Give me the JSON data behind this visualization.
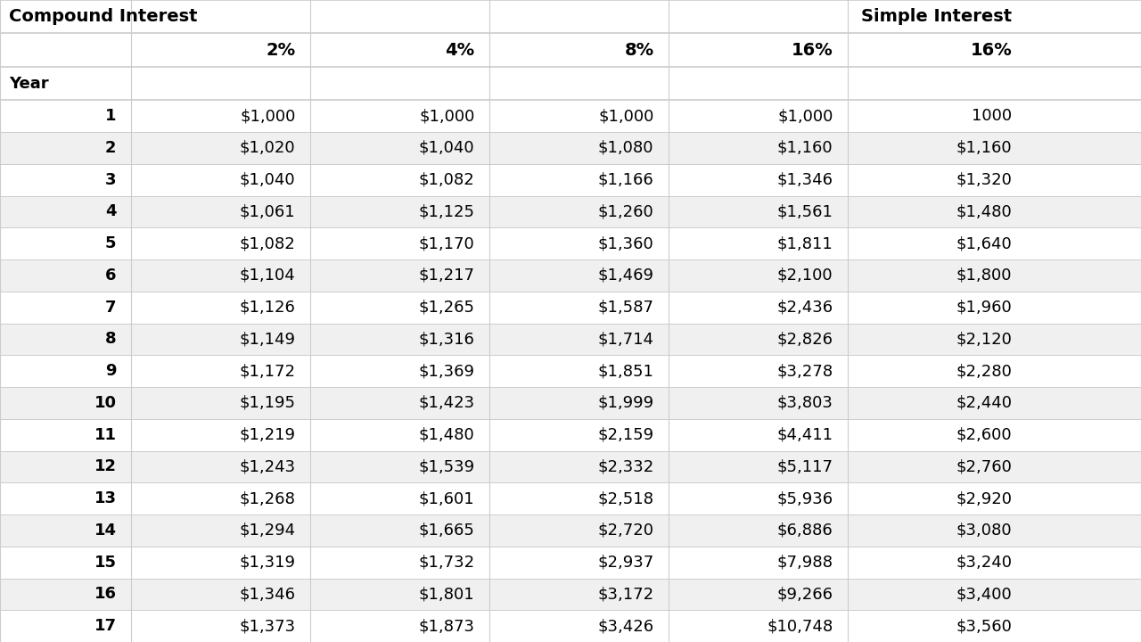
{
  "header_row1_left": "Compound Interest",
  "header_row1_right": "Simple Interest",
  "header_row2": [
    "",
    "2%",
    "4%",
    "8%",
    "16%",
    "16%"
  ],
  "header_row3_left": "Year",
  "years": [
    1,
    2,
    3,
    4,
    5,
    6,
    7,
    8,
    9,
    10,
    11,
    12,
    13,
    14,
    15,
    16,
    17
  ],
  "compound_2": [
    "$1,000",
    "$1,020",
    "$1,040",
    "$1,061",
    "$1,082",
    "$1,104",
    "$1,126",
    "$1,149",
    "$1,172",
    "$1,195",
    "$1,219",
    "$1,243",
    "$1,268",
    "$1,294",
    "$1,319",
    "$1,346",
    "$1,373"
  ],
  "compound_4": [
    "$1,000",
    "$1,040",
    "$1,082",
    "$1,125",
    "$1,170",
    "$1,217",
    "$1,265",
    "$1,316",
    "$1,369",
    "$1,423",
    "$1,480",
    "$1,539",
    "$1,601",
    "$1,665",
    "$1,732",
    "$1,801",
    "$1,873"
  ],
  "compound_8": [
    "$1,000",
    "$1,080",
    "$1,166",
    "$1,260",
    "$1,360",
    "$1,469",
    "$1,587",
    "$1,714",
    "$1,851",
    "$1,999",
    "$2,159",
    "$2,332",
    "$2,518",
    "$2,720",
    "$2,937",
    "$3,172",
    "$3,426"
  ],
  "compound_16": [
    "$1,000",
    "$1,160",
    "$1,346",
    "$1,561",
    "$1,811",
    "$2,100",
    "$2,436",
    "$2,826",
    "$3,278",
    "$3,803",
    "$4,411",
    "$5,117",
    "$5,936",
    "$6,886",
    "$7,988",
    "$9,266",
    "$10,748"
  ],
  "simple_16": [
    "1000",
    "$1,160",
    "$1,320",
    "$1,480",
    "$1,640",
    "$1,800",
    "$1,960",
    "$2,120",
    "$2,280",
    "$2,440",
    "$2,600",
    "$2,760",
    "$2,920",
    "$3,080",
    "$3,240",
    "$3,400",
    "$3,560"
  ],
  "bg_color_even": "#f0f0f0",
  "bg_color_odd": "#ffffff",
  "header_bg": "#ffffff",
  "line_color": "#cccccc",
  "text_color": "#000000"
}
